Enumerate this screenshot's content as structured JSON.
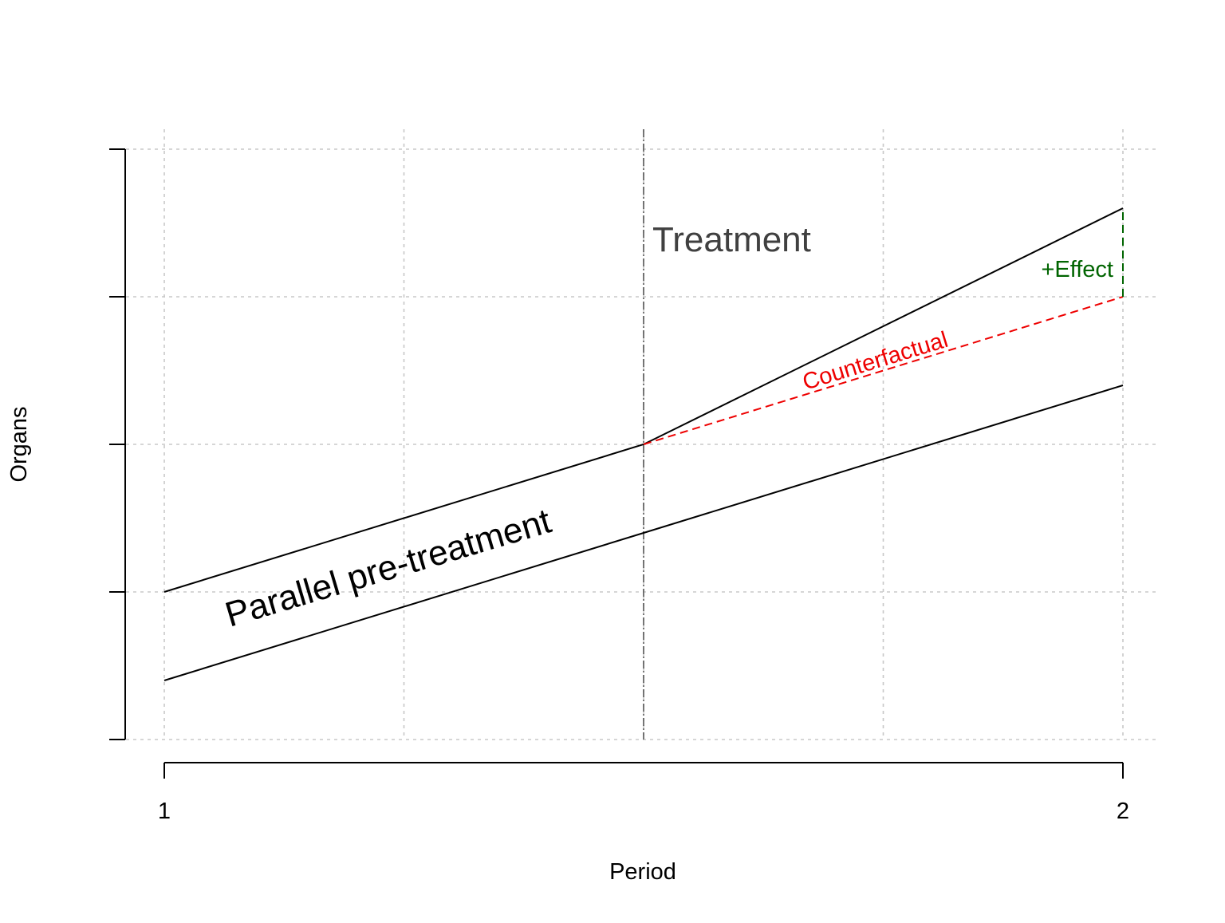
{
  "chart_data": {
    "type": "line",
    "xlabel": "Period",
    "ylabel": "Organs",
    "xlim": [
      1,
      2
    ],
    "ylim": [
      0,
      4
    ],
    "x_ticks": [
      1,
      2
    ],
    "x_tick_labels": [
      "1",
      "2"
    ],
    "x_grid": [
      1,
      1.25,
      1.5,
      1.75,
      2
    ],
    "y_ticks": [
      0,
      1,
      2,
      3,
      4
    ],
    "y_tick_labels": [
      "",
      "",
      "",
      "",
      ""
    ],
    "grid": true,
    "treatment_x": 1.5,
    "series": [
      {
        "values": [
          [
            1,
            1.0
          ],
          [
            1.5,
            2.0
          ],
          [
            2,
            3.6
          ]
        ],
        "color": "#000000",
        "style": "solid"
      },
      {
        "values": [
          [
            1,
            0.4
          ],
          [
            1.5,
            1.4
          ],
          [
            2,
            2.4
          ]
        ],
        "color": "#000000",
        "style": "solid"
      },
      {
        "values": [
          [
            1.5,
            2.0
          ],
          [
            2,
            3.0
          ]
        ],
        "color": "#ee0000",
        "style": "dashed"
      },
      {
        "values": [
          [
            2,
            3.0
          ],
          [
            2,
            3.6
          ]
        ],
        "color": "#006400",
        "style": "dashed"
      }
    ],
    "annotations": [
      {
        "text": "Treatment",
        "color": "#404040"
      },
      {
        "text": "Parallel pre-treatment",
        "color": "#000000"
      },
      {
        "text": "Counterfactual",
        "color": "#ee0000"
      },
      {
        "text": "+Effect",
        "color": "#006400"
      }
    ]
  }
}
